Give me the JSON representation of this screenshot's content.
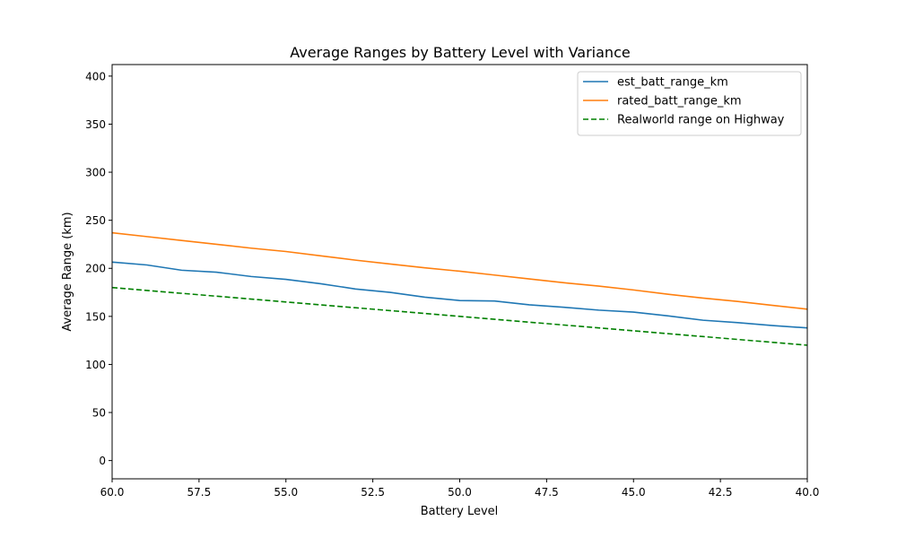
{
  "chart_data": {
    "type": "line",
    "title": "Average Ranges by Battery Level with Variance",
    "xlabel": "Battery Level",
    "ylabel": "Average Range (km)",
    "xlim": [
      60,
      40
    ],
    "ylim": [
      -19,
      412
    ],
    "x_ticks": [
      60,
      57.5,
      55,
      52.5,
      50,
      47.5,
      45,
      42.5,
      40
    ],
    "x_tick_labels": [
      "60.0",
      "57.5",
      "55.0",
      "52.5",
      "50.0",
      "47.5",
      "45.0",
      "42.5",
      "40.0"
    ],
    "y_ticks": [
      0,
      50,
      100,
      150,
      200,
      250,
      300,
      350,
      400
    ],
    "y_tick_labels": [
      "0",
      "50",
      "100",
      "150",
      "200",
      "250",
      "300",
      "350",
      "400"
    ],
    "grid": false,
    "legend_position": "top-right",
    "x": [
      60,
      59,
      58,
      57,
      56,
      55,
      54,
      53,
      52,
      51,
      50,
      49,
      48,
      47,
      46,
      45,
      44,
      43,
      42,
      41,
      40
    ],
    "series": [
      {
        "name": "est_batt_range_km",
        "color": "#1f77b4",
        "style": "solid",
        "values": [
          206.5,
          203.5,
          198,
          196,
          191.5,
          188.5,
          184,
          178.5,
          175,
          170,
          166.5,
          166,
          162,
          159.5,
          156.5,
          154.5,
          150.5,
          146,
          143.5,
          140.5,
          138
        ]
      },
      {
        "name": "rated_batt_range_km",
        "color": "#ff7f0e",
        "style": "solid",
        "values": [
          237,
          233,
          229,
          225,
          221,
          217.5,
          213,
          208.5,
          204.5,
          200.5,
          197,
          193,
          189,
          185,
          181.5,
          177.5,
          173,
          169,
          165.5,
          161.5,
          157.5
        ]
      },
      {
        "name": "Realworld range on Highway",
        "color": "#008000",
        "style": "dashed",
        "values": [
          180,
          177,
          174,
          171,
          168,
          165,
          162,
          159,
          156,
          153,
          150,
          147,
          144,
          141,
          138,
          135,
          132,
          129,
          126,
          123,
          120
        ]
      }
    ]
  }
}
